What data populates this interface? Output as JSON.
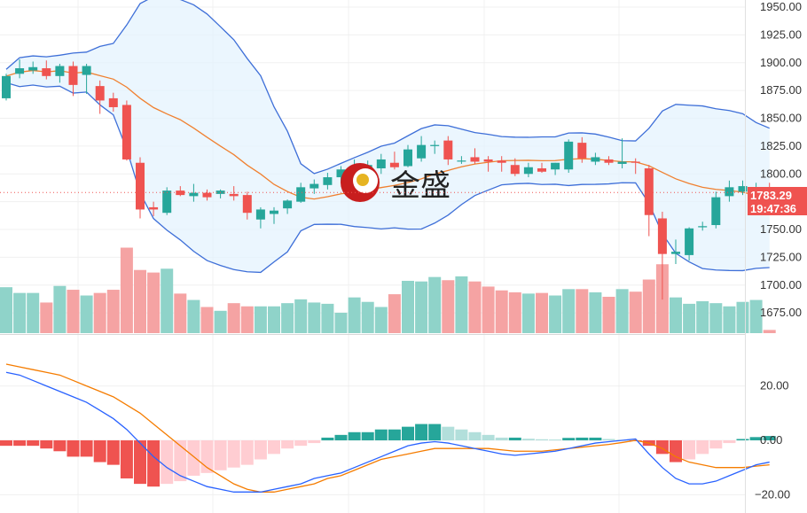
{
  "watermark": {
    "text": "金盛",
    "logo_colors": [
      "#c81e1e",
      "#e6b422"
    ]
  },
  "price_axis": {
    "ticks": [
      "1950.00",
      "1925.00",
      "1900.00",
      "1875.00",
      "1850.00",
      "1825.00",
      "1800.00",
      "1775.00",
      "1750.00",
      "1725.00",
      "1700.00",
      "1675.00"
    ]
  },
  "macd_axis": {
    "ticks": [
      "20.00",
      "0.00",
      "−20.00"
    ]
  },
  "current_price": {
    "value": "1783.29",
    "countdown": "19:47:36",
    "color": "#ef5350"
  },
  "colors": {
    "up": "#26a69a",
    "down": "#ef5350",
    "bb_line": "#3e6fd8",
    "bb_fill": "#e3f2fd",
    "ma": "#f08030",
    "vol_up": "#8fd3c9",
    "vol_down": "#f5a3a3",
    "macd_line": "#2962ff",
    "signal_line": "#f57c00",
    "hist_up_strong": "#26a69a",
    "hist_up_weak": "#b2dfdb",
    "hist_down_strong": "#ef5350",
    "hist_down_weak": "#ffcdd2",
    "grid": "#f0f0f0"
  },
  "chart_data": [
    {
      "type": "candlestick",
      "ylim": [
        1660,
        1955
      ],
      "grid": true,
      "candles": [
        [
          1868,
          1890,
          1866,
          1888
        ],
        [
          1890,
          1903,
          1886,
          1895
        ],
        [
          1893,
          1901,
          1890,
          1896
        ],
        [
          1895,
          1902,
          1885,
          1888
        ],
        [
          1888,
          1899,
          1882,
          1897
        ],
        [
          1897,
          1901,
          1870,
          1880
        ],
        [
          1889,
          1899,
          1872,
          1897
        ],
        [
          1879,
          1884,
          1854,
          1866
        ],
        [
          1868,
          1873,
          1856,
          1860
        ],
        [
          1862,
          1866,
          1812,
          1813
        ],
        [
          1810,
          1815,
          1760,
          1768
        ],
        [
          1770,
          1775,
          1762,
          1768
        ],
        [
          1765,
          1788,
          1763,
          1785
        ],
        [
          1785,
          1789,
          1780,
          1781
        ],
        [
          1780,
          1791,
          1775,
          1783
        ],
        [
          1783,
          1786,
          1776,
          1779
        ],
        [
          1782,
          1786,
          1778,
          1785
        ],
        [
          1782,
          1789,
          1776,
          1780
        ],
        [
          1781,
          1784,
          1759,
          1765
        ],
        [
          1759,
          1770,
          1751,
          1768
        ],
        [
          1764,
          1770,
          1755,
          1767
        ],
        [
          1769,
          1777,
          1764,
          1776
        ],
        [
          1775,
          1792,
          1774,
          1788
        ],
        [
          1787,
          1795,
          1782,
          1791
        ],
        [
          1790,
          1801,
          1786,
          1797
        ],
        [
          1797,
          1807,
          1792,
          1804
        ],
        [
          1801,
          1813,
          1797,
          1807
        ],
        [
          1804,
          1812,
          1798,
          1808
        ],
        [
          1805,
          1818,
          1800,
          1813
        ],
        [
          1810,
          1820,
          1804,
          1806
        ],
        [
          1807,
          1826,
          1806,
          1822
        ],
        [
          1814,
          1834,
          1811,
          1826
        ],
        [
          1825,
          1830,
          1818,
          1826
        ],
        [
          1830,
          1834,
          1808,
          1813
        ],
        [
          1812,
          1816,
          1809,
          1812
        ],
        [
          1815,
          1823,
          1809,
          1811
        ],
        [
          1813,
          1816,
          1802,
          1811
        ],
        [
          1812,
          1816,
          1802,
          1810
        ],
        [
          1808,
          1814,
          1798,
          1800
        ],
        [
          1800,
          1810,
          1797,
          1806
        ],
        [
          1805,
          1810,
          1801,
          1802
        ],
        [
          1804,
          1810,
          1799,
          1810
        ],
        [
          1804,
          1831,
          1801,
          1829
        ],
        [
          1828,
          1833,
          1810,
          1814
        ],
        [
          1811,
          1819,
          1808,
          1815
        ],
        [
          1813,
          1816,
          1808,
          1810
        ],
        [
          1809,
          1832,
          1805,
          1811
        ],
        [
          1811,
          1814,
          1800,
          1810
        ],
        [
          1805,
          1808,
          1744,
          1763
        ],
        [
          1760,
          1766,
          1687,
          1728
        ],
        [
          1728,
          1741,
          1719,
          1730
        ],
        [
          1727,
          1752,
          1722,
          1751
        ],
        [
          1752,
          1757,
          1749,
          1753
        ],
        [
          1754,
          1784,
          1751,
          1779
        ],
        [
          1780,
          1794,
          1775,
          1788
        ],
        [
          1784,
          1794,
          1781,
          1789
        ],
        [
          1785,
          1792,
          1782,
          1788
        ],
        [
          1787,
          1792,
          1781,
          1783
        ]
      ],
      "volume": [
        0.72,
        0.63,
        0.63,
        0.48,
        0.74,
        0.68,
        0.59,
        0.63,
        0.68,
        1.34,
        0.99,
        0.95,
        1.01,
        0.62,
        0.52,
        0.41,
        0.35,
        0.47,
        0.42,
        0.42,
        0.42,
        0.47,
        0.53,
        0.48,
        0.46,
        0.32,
        0.56,
        0.49,
        0.41,
        0.61,
        0.82,
        0.81,
        0.88,
        0.83,
        0.89,
        0.81,
        0.73,
        0.67,
        0.64,
        0.62,
        0.63,
        0.59,
        0.69,
        0.69,
        0.64,
        0.57,
        0.69,
        0.65,
        0.84,
        1.08,
        0.56,
        0.46,
        0.5,
        0.47,
        0.42,
        0.49,
        0.52,
        0.05
      ]
    },
    {
      "type": "macd",
      "ylim": [
        -25,
        42
      ],
      "histogram": [
        -2,
        -2,
        -2,
        -3,
        -4,
        -6,
        -6,
        -8,
        -9,
        -14,
        -16,
        -17,
        -16,
        -15,
        -13,
        -12,
        -11,
        -10,
        -9,
        -7,
        -5,
        -3,
        -2,
        -1,
        1,
        2,
        3,
        3,
        4,
        4,
        5,
        6,
        6,
        5,
        4,
        3,
        2,
        1,
        1,
        0.6,
        0.4,
        0.3,
        0.9,
        1,
        1,
        0.5,
        0.2,
        -0.2,
        -2,
        -5,
        -8,
        -7,
        -5,
        -3,
        -1,
        0.5,
        1.2,
        1.6
      ],
      "macd": [
        25,
        24,
        22,
        20,
        18,
        16,
        14,
        11,
        8,
        4,
        -1,
        -6,
        -10,
        -13,
        -15,
        -17,
        -18,
        -19,
        -19,
        -19,
        -18,
        -17,
        -16,
        -14,
        -13,
        -12,
        -10,
        -8,
        -6,
        -4,
        -2,
        -1,
        -0.5,
        -1,
        -2,
        -3,
        -4,
        -5,
        -5.5,
        -5,
        -4.5,
        -4,
        -3,
        -2,
        -1,
        -0.5,
        0,
        0.5,
        -5,
        -10,
        -14,
        -16,
        -16,
        -15,
        -13,
        -11,
        -9,
        -8
      ],
      "signal": [
        28,
        27,
        26,
        25,
        24,
        22,
        20,
        18,
        16,
        13,
        10,
        6,
        2,
        -2,
        -6,
        -10,
        -13,
        -16,
        -18,
        -19,
        -19,
        -18,
        -17,
        -16,
        -14,
        -13,
        -11,
        -9,
        -7,
        -6,
        -5,
        -4,
        -3,
        -3,
        -3,
        -3,
        -3,
        -3.5,
        -4,
        -4,
        -4,
        -3.5,
        -3,
        -2.5,
        -2,
        -1.5,
        -0.8,
        0,
        -1,
        -3,
        -6,
        -8,
        -9,
        -10,
        -10,
        -10,
        -9.5,
        -9
      ]
    }
  ]
}
